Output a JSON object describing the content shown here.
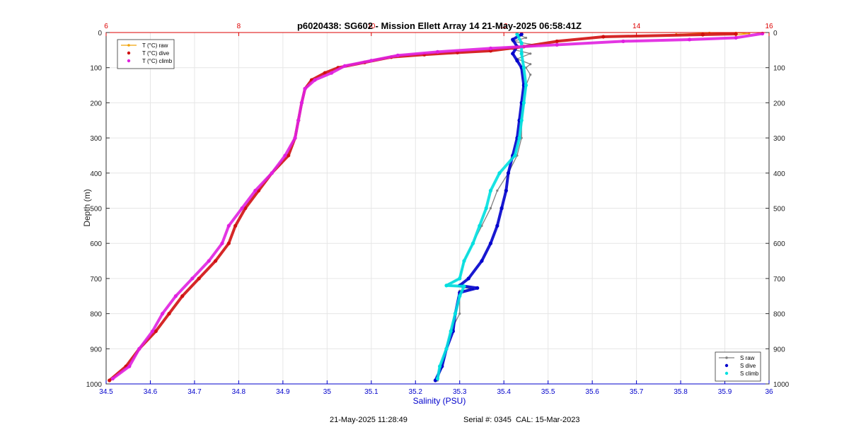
{
  "chart_data": {
    "type": "scatter",
    "title": "p6020438: SG602 - Mission Ellett Array 14 21-May-2025 06:58:41Z",
    "xlabel": "Salinity (PSU)",
    "ylabel": "Depth (m)",
    "xlim": [
      34.5,
      36
    ],
    "ylim": [
      0,
      1000
    ],
    "y_reversed": true,
    "grid": true,
    "x_ticks": [
      "34.5",
      "34.6",
      "34.7",
      "34.8",
      "34.9",
      "35",
      "35.1",
      "35.2",
      "35.3",
      "35.4",
      "35.5",
      "35.6",
      "35.7",
      "35.8",
      "35.9",
      "36"
    ],
    "y_ticks": [
      "0",
      "100",
      "200",
      "300",
      "400",
      "500",
      "600",
      "700",
      "800",
      "900",
      "1000"
    ],
    "x2lim": [
      6,
      16
    ],
    "x2_ticks": [
      "6",
      "8",
      "10",
      "12",
      "14",
      "16"
    ],
    "legend_temperature": {
      "placement": "top-left",
      "entries": [
        "T (°C) raw",
        "T (°C) dive",
        "T (°C) climb"
      ]
    },
    "legend_salinity": {
      "placement": "bottom-right",
      "entries": [
        "S raw",
        "S dive",
        "S climb"
      ]
    },
    "colors": {
      "t_raw": "#f0a30a",
      "t_dive": "#d01010",
      "t_climb": "#e020e0",
      "s_raw": "#808080",
      "s_dive": "#0000cc",
      "s_climb": "#00e0e0",
      "axis_top": "#dd0000",
      "axis_bottom": "#0000cc",
      "axis_left": "#333333"
    },
    "series": [
      {
        "name": "T (°C) raw",
        "axis": "temperature",
        "marker": "line",
        "points": [
          [
            14.6,
            5
          ],
          [
            15.1,
            1
          ],
          [
            15.5,
            1
          ],
          [
            15.7,
            3
          ],
          [
            15.5,
            7
          ]
        ]
      },
      {
        "name": "T (°C) dive",
        "axis": "temperature",
        "marker": "dot",
        "points": [
          [
            15.5,
            4
          ],
          [
            15.0,
            6
          ],
          [
            13.5,
            12
          ],
          [
            12.8,
            25
          ],
          [
            12.3,
            40
          ],
          [
            11.8,
            52
          ],
          [
            11.3,
            57
          ],
          [
            10.8,
            63
          ],
          [
            10.3,
            70
          ],
          [
            9.9,
            85
          ],
          [
            9.5,
            100
          ],
          [
            9.3,
            115
          ],
          [
            9.1,
            135
          ],
          [
            9.0,
            160
          ],
          [
            8.95,
            200
          ],
          [
            8.9,
            250
          ],
          [
            8.85,
            300
          ],
          [
            8.75,
            350
          ],
          [
            8.5,
            400
          ],
          [
            8.3,
            450
          ],
          [
            8.1,
            500
          ],
          [
            7.95,
            550
          ],
          [
            7.85,
            600
          ],
          [
            7.65,
            650
          ],
          [
            7.4,
            700
          ],
          [
            7.15,
            750
          ],
          [
            6.95,
            800
          ],
          [
            6.75,
            850
          ],
          [
            6.5,
            900
          ],
          [
            6.3,
            950
          ],
          [
            6.05,
            990
          ]
        ]
      },
      {
        "name": "T (°C) climb",
        "axis": "temperature",
        "marker": "dot",
        "points": [
          [
            15.9,
            3
          ],
          [
            15.5,
            15
          ],
          [
            14.8,
            20
          ],
          [
            13.8,
            25
          ],
          [
            12.8,
            35
          ],
          [
            11.8,
            45
          ],
          [
            11.0,
            55
          ],
          [
            10.4,
            65
          ],
          [
            10.0,
            80
          ],
          [
            9.6,
            95
          ],
          [
            9.4,
            115
          ],
          [
            9.15,
            135
          ],
          [
            9.0,
            160
          ],
          [
            8.95,
            200
          ],
          [
            8.9,
            250
          ],
          [
            8.85,
            300
          ],
          [
            8.7,
            350
          ],
          [
            8.5,
            400
          ],
          [
            8.25,
            450
          ],
          [
            8.05,
            500
          ],
          [
            7.85,
            550
          ],
          [
            7.75,
            600
          ],
          [
            7.55,
            650
          ],
          [
            7.3,
            700
          ],
          [
            7.05,
            750
          ],
          [
            6.85,
            800
          ],
          [
            6.7,
            850
          ],
          [
            6.5,
            900
          ],
          [
            6.35,
            950
          ],
          [
            6.1,
            985
          ]
        ]
      },
      {
        "name": "S raw",
        "axis": "salinity",
        "marker": "line",
        "points": [
          [
            35.43,
            5
          ],
          [
            35.45,
            15
          ],
          [
            35.42,
            25
          ],
          [
            35.47,
            35
          ],
          [
            35.41,
            45
          ],
          [
            35.46,
            60
          ],
          [
            35.43,
            75
          ],
          [
            35.46,
            90
          ],
          [
            35.45,
            100
          ],
          [
            35.46,
            120
          ],
          [
            35.45,
            150
          ],
          [
            35.445,
            200
          ],
          [
            35.44,
            250
          ],
          [
            35.44,
            300
          ],
          [
            35.43,
            350
          ],
          [
            35.41,
            400
          ],
          [
            35.385,
            450
          ],
          [
            35.37,
            500
          ],
          [
            35.35,
            550
          ],
          [
            35.33,
            600
          ],
          [
            35.31,
            650
          ],
          [
            35.3,
            700
          ],
          [
            35.27,
            718
          ],
          [
            35.33,
            730
          ],
          [
            35.3,
            735
          ],
          [
            35.3,
            750
          ],
          [
            35.3,
            800
          ],
          [
            35.28,
            850
          ],
          [
            35.27,
            900
          ],
          [
            35.26,
            950
          ],
          [
            35.25,
            990
          ]
        ]
      },
      {
        "name": "S dive",
        "axis": "salinity",
        "marker": "dot",
        "points": [
          [
            35.44,
            5
          ],
          [
            35.42,
            20
          ],
          [
            35.43,
            40
          ],
          [
            35.42,
            60
          ],
          [
            35.43,
            80
          ],
          [
            35.44,
            100
          ],
          [
            35.445,
            150
          ],
          [
            35.44,
            200
          ],
          [
            35.435,
            250
          ],
          [
            35.43,
            300
          ],
          [
            35.42,
            350
          ],
          [
            35.41,
            400
          ],
          [
            35.405,
            450
          ],
          [
            35.395,
            500
          ],
          [
            35.385,
            550
          ],
          [
            35.37,
            600
          ],
          [
            35.35,
            650
          ],
          [
            35.32,
            700
          ],
          [
            35.3,
            720
          ],
          [
            35.34,
            727
          ],
          [
            35.3,
            740
          ],
          [
            35.29,
            800
          ],
          [
            35.285,
            850
          ],
          [
            35.27,
            900
          ],
          [
            35.26,
            950
          ],
          [
            35.245,
            990
          ]
        ]
      },
      {
        "name": "S climb",
        "axis": "salinity",
        "marker": "dot",
        "points": [
          [
            35.43,
            5
          ],
          [
            35.44,
            30
          ],
          [
            35.44,
            60
          ],
          [
            35.445,
            100
          ],
          [
            35.45,
            150
          ],
          [
            35.445,
            200
          ],
          [
            35.44,
            250
          ],
          [
            35.435,
            300
          ],
          [
            35.425,
            350
          ],
          [
            35.39,
            400
          ],
          [
            35.37,
            450
          ],
          [
            35.36,
            500
          ],
          [
            35.345,
            550
          ],
          [
            35.33,
            600
          ],
          [
            35.31,
            650
          ],
          [
            35.3,
            700
          ],
          [
            35.27,
            720
          ],
          [
            35.31,
            722
          ],
          [
            35.3,
            750
          ],
          [
            35.29,
            800
          ],
          [
            35.28,
            850
          ],
          [
            35.27,
            900
          ],
          [
            35.255,
            950
          ],
          [
            35.25,
            985
          ]
        ]
      }
    ]
  },
  "footer": {
    "timestamp": "21-May-2025 11:28:49",
    "serial": "Serial #: 0345  CAL: 15-Mar-2023"
  }
}
